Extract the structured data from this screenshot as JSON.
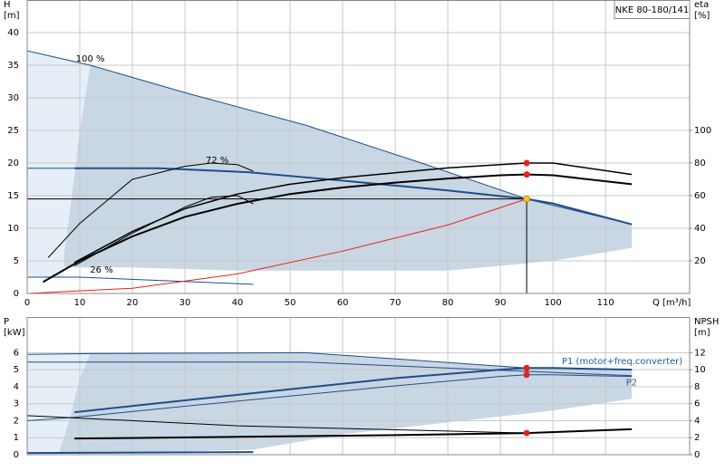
{
  "chart_data": [
    {
      "type": "line",
      "title": "NKE 80-180/141",
      "xlabel": "Q [m³/h]",
      "ylabel": [
        "H",
        "[m]"
      ],
      "y2label": [
        "eta",
        "[%]"
      ],
      "xlim": [
        0,
        126
      ],
      "xticks": [
        0,
        10,
        20,
        30,
        40,
        50,
        60,
        70,
        80,
        90,
        100,
        110
      ],
      "xtick_labels": true,
      "ylim": [
        0,
        45
      ],
      "yticks": [
        0,
        5,
        10,
        15,
        20,
        25,
        30,
        35,
        40
      ],
      "y2lim": [
        0,
        180
      ],
      "y2ticks": [
        20,
        40,
        60,
        80,
        100
      ],
      "grid": true,
      "series": [
        {
          "kind": "area",
          "color": "#c9d6e3",
          "x": [
            12,
            30,
            53,
            75,
            95,
            115,
            115,
            100,
            80,
            40,
            20,
            10,
            7,
            7,
            8.5,
            10
          ],
          "values": [
            35,
            30.8,
            25.8,
            20,
            14.5,
            10.6,
            7,
            5,
            3.5,
            3.5,
            4,
            4,
            4,
            6,
            15,
            25
          ]
        },
        {
          "kind": "area",
          "color": "#e6eef7",
          "x": [
            0,
            12,
            10,
            8.5,
            7,
            7,
            0
          ],
          "values": [
            37.2,
            35,
            25,
            15,
            6,
            2.5,
            2.5
          ]
        },
        {
          "name": "100 %",
          "color": "#1f4e8c",
          "width": 1,
          "x": [
            0,
            12,
            30,
            53,
            75,
            95,
            115
          ],
          "values": [
            37.2,
            35,
            30.8,
            25.8,
            20,
            14.5,
            10.6
          ]
        },
        {
          "name": "72 %",
          "color": "#1f4e8c",
          "width": 2,
          "x": [
            9,
            25,
            42,
            60,
            80,
            95,
            100,
            115
          ],
          "values": [
            19.2,
            19.2,
            18.6,
            17.3,
            15.8,
            14.5,
            13.8,
            10.6
          ]
        },
        {
          "color": "#1f4e8c",
          "width": 1,
          "x": [
            0,
            9
          ],
          "values": [
            19.2,
            19.2
          ]
        },
        {
          "name": "26 %",
          "color": "#1f4e8c",
          "width": 1,
          "x": [
            0,
            10,
            43
          ],
          "values": [
            2.5,
            2.5,
            1.4
          ]
        },
        {
          "color": "#e8221c",
          "width": 1,
          "x": [
            0,
            20,
            40,
            60,
            80,
            95
          ],
          "values": [
            0,
            0.8,
            3,
            6.5,
            10.5,
            14.5
          ]
        },
        {
          "axis": "y2",
          "color": "#000000",
          "width": 2,
          "x": [
            3,
            10,
            20,
            30,
            40,
            50,
            60,
            70,
            80,
            90,
            95,
            100,
            115
          ],
          "values": [
            7,
            20,
            35,
            47,
            55,
            61,
            65,
            68,
            70.5,
            72.5,
            73,
            72.5,
            67
          ]
        },
        {
          "axis": "y2",
          "color": "#000000",
          "width": 1.5,
          "x": [
            9,
            20,
            30,
            40,
            50,
            60,
            70,
            80,
            90,
            95,
            100,
            115
          ],
          "values": [
            19,
            38,
            52,
            61,
            67,
            71,
            74,
            77,
            79,
            80,
            80,
            73
          ]
        },
        {
          "axis": "y2",
          "color": "#000000",
          "width": 1,
          "x": [
            4,
            10,
            20,
            30,
            35,
            40,
            43
          ],
          "values": [
            22,
            43,
            70,
            78,
            80,
            79,
            75
          ]
        },
        {
          "axis": "y2",
          "color": "#000000",
          "width": 1,
          "x": [
            9,
            20,
            30,
            35,
            40,
            43
          ],
          "values": [
            17,
            37,
            53,
            59,
            60,
            55
          ]
        }
      ],
      "points": [
        {
          "x": 95,
          "y": 14.5,
          "color": "#f5c518",
          "crosshair": true
        },
        {
          "x": 95,
          "y": 80,
          "axis": "y2",
          "color": "#e8221c"
        },
        {
          "x": 95,
          "y": 73,
          "axis": "y2",
          "color": "#e8221c"
        }
      ]
    },
    {
      "type": "line",
      "ylabel": [
        "P",
        "[kW]"
      ],
      "y2label": [
        "NPSH",
        "[m]"
      ],
      "xlim": [
        0,
        126
      ],
      "xticks": [
        0,
        10,
        20,
        30,
        40,
        50,
        60,
        70,
        80,
        90,
        100,
        110
      ],
      "xtick_labels": false,
      "ylim": [
        0,
        8.1
      ],
      "yticks": [
        0,
        1,
        2,
        3,
        4,
        5,
        6
      ],
      "y2lim": [
        0,
        16.2
      ],
      "y2ticks": [
        0,
        2,
        4,
        6,
        8,
        10,
        12
      ],
      "grid": true,
      "series": [
        {
          "kind": "area",
          "color": "#c9d6e3",
          "x": [
            12,
            53,
            95,
            115,
            115,
            100,
            80,
            60,
            43,
            20,
            6,
            8,
            10
          ],
          "values": [
            5.95,
            6.0,
            5.1,
            5.0,
            3.3,
            2.6,
            1.9,
            1.2,
            0.3,
            0.1,
            0.1,
            2,
            4.5
          ]
        },
        {
          "kind": "area",
          "color": "#e6eef7",
          "x": [
            0,
            12,
            10,
            8,
            6,
            0
          ],
          "values": [
            5.9,
            5.95,
            4.5,
            2,
            0.1,
            0.1
          ]
        },
        {
          "color": "#1f4e8c",
          "width": 1,
          "x": [
            0,
            12,
            53,
            95,
            115
          ],
          "values": [
            5.9,
            5.95,
            6.0,
            5.1,
            5.0
          ]
        },
        {
          "color": "#1f4e8c",
          "width": 1,
          "x": [
            0,
            53,
            95,
            115
          ],
          "values": [
            5.45,
            5.45,
            4.9,
            4.65
          ]
        },
        {
          "name": "P1 (motor+freq.converter)",
          "color": "#1f4e8c",
          "width": 2,
          "x": [
            9,
            30,
            50,
            70,
            90,
            95,
            100,
            115
          ],
          "values": [
            2.5,
            3.2,
            3.85,
            4.5,
            5.0,
            5.1,
            5.1,
            5.0
          ]
        },
        {
          "name": "P2",
          "color": "#1f4e8c",
          "width": 1,
          "x": [
            0,
            9,
            30,
            50,
            70,
            90,
            95,
            100,
            115
          ],
          "values": [
            2.0,
            2.2,
            2.85,
            3.45,
            4.05,
            4.6,
            4.7,
            4.7,
            4.6
          ]
        },
        {
          "color": "#1f4e8c",
          "width": 2,
          "x": [
            0,
            43
          ],
          "values": [
            0.1,
            0.15
          ]
        },
        {
          "axis": "y2",
          "color": "#000000",
          "width": 1,
          "x": [
            0,
            40,
            95
          ],
          "values": [
            4.6,
            3.4,
            2.55
          ]
        },
        {
          "axis": "y2",
          "color": "#000000",
          "width": 2,
          "x": [
            9,
            40,
            70,
            95,
            115
          ],
          "values": [
            1.9,
            2.1,
            2.3,
            2.55,
            3.0
          ]
        }
      ],
      "points": [
        {
          "x": 95,
          "y": 5.1,
          "color": "#e8221c"
        },
        {
          "x": 95,
          "y": 4.7,
          "color": "#e8221c"
        },
        {
          "x": 95,
          "y": 2.55,
          "axis": "y2",
          "color": "#e8221c"
        }
      ]
    }
  ]
}
